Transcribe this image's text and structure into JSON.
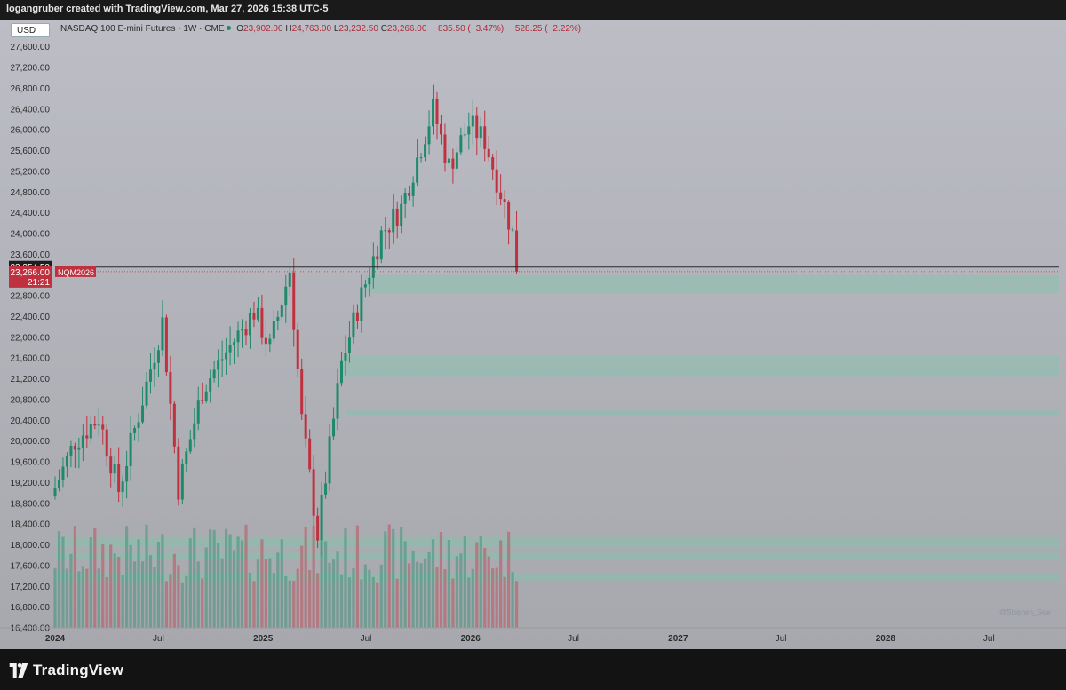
{
  "header": {
    "caption": "logangruber created with TradingView.com, Mar 27, 2026 15:38 UTC-5"
  },
  "footer": {
    "brand": "TradingView"
  },
  "watermark": "@Stephen_Sew",
  "colors": {
    "up": "#1f8a6a",
    "down": "#c0313f",
    "zone": "#7fc4ab",
    "background": "#b8b9c0",
    "current_price_tag": "#c0313f",
    "last_close_tag": "#1e1e1e"
  },
  "legend": {
    "currency": "USD",
    "symbol_name": "NASDAQ 100 E-mini Futures · 1W · CME",
    "o_label": "O",
    "o_value": "23,902.00",
    "h_label": "H",
    "h_value": "24,763.00",
    "l_label": "L",
    "l_value": "23,232.50",
    "c_label": "C",
    "c_value": "23,266.00",
    "change": "−835.50 (−3.47%)",
    "change2": "−528.25 (−2.22%)"
  },
  "price_axis": {
    "ticks": [
      "27,600.00",
      "27,200.00",
      "26,800.00",
      "26,400.00",
      "26,000.00",
      "25,600.00",
      "25,200.00",
      "24,800.00",
      "24,400.00",
      "24,000.00",
      "23,600.00",
      "23,200.00",
      "22,800.00",
      "22,400.00",
      "22,000.00",
      "21,600.00",
      "21,200.00",
      "20,800.00",
      "20,400.00",
      "20,000.00",
      "19,600.00",
      "19,200.00",
      "18,800.00",
      "18,400.00",
      "18,000.00",
      "17,600.00",
      "17,200.00",
      "16,800.00",
      "16,400.00"
    ],
    "last_close_value": 23354.5,
    "last_close_label": "23,354.50",
    "current_value": 23266.0,
    "current_label": "23,266.00",
    "current_symbol": "NQM2026",
    "countdown": "21:21"
  },
  "time_axis": {
    "labels": [
      "2024",
      "Jul",
      "2025",
      "Jul",
      "2026",
      "Jul",
      "2027",
      "Jul",
      "2028",
      "Jul"
    ]
  },
  "chart_data": {
    "type": "candlestick",
    "interval": "1W",
    "symbol": "NASDAQ 100 E-mini Futures",
    "y_range": [
      16400,
      27600
    ],
    "x_range": [
      "2024-01-01",
      "2028-11-01"
    ],
    "candles_note": "weekly OHLC estimated from chart",
    "anchors": [
      [
        "2024-01-01",
        19100
      ],
      [
        "2024-02-05",
        20000
      ],
      [
        "2024-03-18",
        20450
      ],
      [
        "2024-04-22",
        19050
      ],
      [
        "2024-06-10",
        21100
      ],
      [
        "2024-07-08",
        22300
      ],
      [
        "2024-08-05",
        19100
      ],
      [
        "2024-09-16",
        21000
      ],
      [
        "2024-10-21",
        21600
      ],
      [
        "2024-12-16",
        22500
      ],
      [
        "2025-01-13",
        21800
      ],
      [
        "2025-02-17",
        23300
      ],
      [
        "2025-03-10",
        20400
      ],
      [
        "2025-04-07",
        18200
      ],
      [
        "2025-05-19",
        21500
      ],
      [
        "2025-06-23",
        22800
      ],
      [
        "2025-07-28",
        24000
      ],
      [
        "2025-09-01",
        24500
      ],
      [
        "2025-10-27",
        26400
      ],
      [
        "2025-11-24",
        25300
      ],
      [
        "2025-12-29",
        26100
      ],
      [
        "2026-01-26",
        25800
      ],
      [
        "2026-02-23",
        24800
      ],
      [
        "2026-03-16",
        24000
      ],
      [
        "2026-03-23",
        23266
      ]
    ],
    "volume_note": "volume histogram at bottom, heights estimated (relative 0-1)",
    "support_zones": [
      {
        "from": 22850,
        "to": 23200
      },
      {
        "from": 21250,
        "to": 21650
      },
      {
        "from": 20500,
        "to": 20600
      },
      {
        "from": 17950,
        "to": 18150
      },
      {
        "from": 17700,
        "to": 17850
      },
      {
        "from": 17300,
        "to": 17450
      }
    ]
  }
}
